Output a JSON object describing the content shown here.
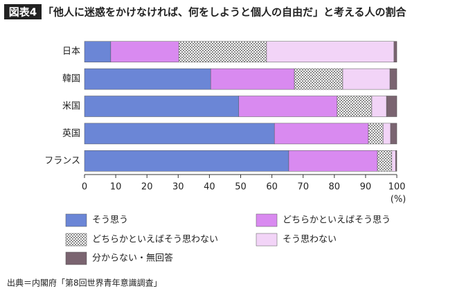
{
  "chart_data": {
    "type": "stacked-barh",
    "label": "図表4",
    "title": "「他人に迷惑をかけなければ、何をしようと個人の自由だ」と考える人の割合",
    "categories": [
      "日本",
      "韓国",
      "米国",
      "英国",
      "フランス"
    ],
    "series": [
      {
        "name": "そう思う",
        "color": "#6b86d6",
        "values": [
          8.4,
          40.4,
          49.4,
          60.8,
          65.4
        ]
      },
      {
        "name": "どちらかといえばそう思う",
        "color": "#d98af0",
        "values": [
          21.8,
          26.8,
          31.5,
          30.1,
          28.4
        ]
      },
      {
        "name": "どちらかといえばそう思わない",
        "color": "#8a8a8a",
        "pattern": "checker",
        "values": [
          28.1,
          15.5,
          11.1,
          4.7,
          4.6
        ]
      },
      {
        "name": "そう思わない",
        "color": "#f2d4f7",
        "values": [
          40.8,
          15.1,
          4.7,
          2.4,
          1.2
        ]
      },
      {
        "name": "分からない・無回答",
        "color": "#7a6470",
        "values": [
          0.9,
          2.2,
          3.3,
          2.0,
          0.4
        ]
      }
    ],
    "xlim": [
      0,
      100
    ],
    "xticks": [
      0,
      10,
      20,
      30,
      40,
      50,
      60,
      70,
      80,
      90,
      100
    ],
    "x_unit": "(%)",
    "legend_columns": 2,
    "source": "出典＝内閣府「第8回世界青年意識調査」"
  }
}
